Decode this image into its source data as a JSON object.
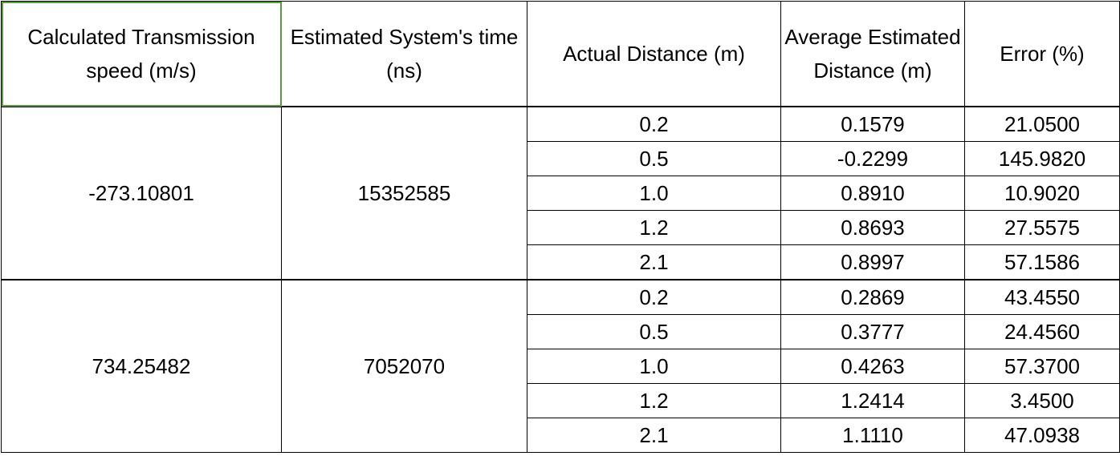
{
  "headers": [
    "Calculated Transmission speed (m/s)",
    "Estimated System's time (ns)",
    "Actual Distance (m)",
    "Average Estimated Distance (m)",
    "Error (%)"
  ],
  "groups": [
    {
      "speed": "-273.10801",
      "time": "15352585",
      "rows": [
        {
          "actual": "0.2",
          "estimated": "0.1579",
          "error": "21.0500"
        },
        {
          "actual": "0.5",
          "estimated": "-0.2299",
          "error": "145.9820"
        },
        {
          "actual": "1.0",
          "estimated": "0.8910",
          "error": "10.9020"
        },
        {
          "actual": "1.2",
          "estimated": "0.8693",
          "error": "27.5575"
        },
        {
          "actual": "2.1",
          "estimated": "0.8997",
          "error": "57.1586"
        }
      ]
    },
    {
      "speed": "734.25482",
      "time": "7052070",
      "rows": [
        {
          "actual": "0.2",
          "estimated": "0.2869",
          "error": "43.4550"
        },
        {
          "actual": "0.5",
          "estimated": "0.3777",
          "error": "24.4560"
        },
        {
          "actual": "1.0",
          "estimated": "0.4263",
          "error": "57.3700"
        },
        {
          "actual": "1.2",
          "estimated": "1.2414",
          "error": "3.4500"
        },
        {
          "actual": "2.1",
          "estimated": "1.1110",
          "error": "47.0938"
        }
      ]
    }
  ],
  "colors": {
    "selection_border": "#5a9b3c",
    "grid": "#000000"
  }
}
